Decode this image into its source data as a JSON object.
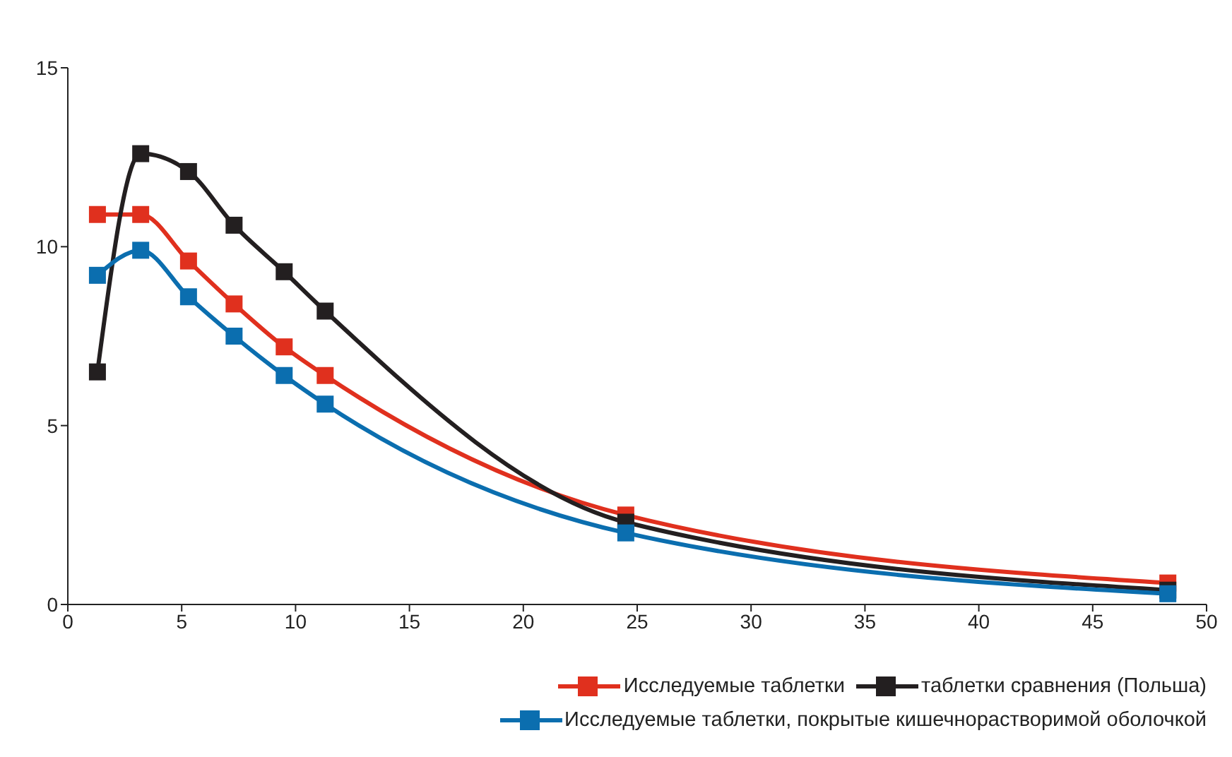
{
  "chart_data": {
    "type": "line",
    "x": [
      1.3,
      3.2,
      5.3,
      7.3,
      9.5,
      11.3,
      24.5,
      48.3
    ],
    "series": [
      {
        "name": "Исследуемые таблетки",
        "color": "#e0301e",
        "values": [
          10.9,
          10.9,
          9.6,
          8.4,
          7.2,
          6.4,
          2.5,
          0.6
        ]
      },
      {
        "name": "таблетки сравнения (Польша)",
        "color": "#231f20",
        "values": [
          6.5,
          12.6,
          12.1,
          10.6,
          9.3,
          8.2,
          2.3,
          0.4
        ]
      },
      {
        "name": "Исследуемые таблетки, покрытые кишечнорастворимой оболочкой",
        "color": "#0b6eaf",
        "values": [
          9.2,
          9.9,
          8.6,
          7.5,
          6.4,
          5.6,
          2.0,
          0.3
        ]
      }
    ],
    "xlim": [
      0,
      50
    ],
    "xticks": [
      0,
      5,
      10,
      15,
      20,
      25,
      30,
      35,
      40,
      45,
      50
    ],
    "ylim": [
      0,
      15
    ],
    "yticks": [
      0,
      5,
      10,
      15
    ],
    "grid": false,
    "legend": "bottom right",
    "marker": "square",
    "line_style": "solid"
  }
}
